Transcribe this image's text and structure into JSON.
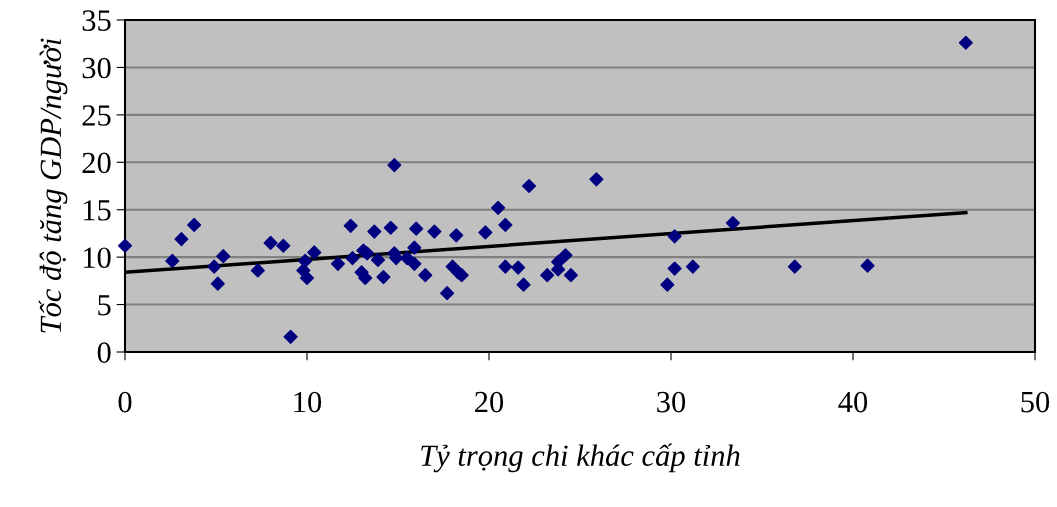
{
  "chart_data": {
    "type": "scatter",
    "xlabel": "Tỷ trọng chi khác cấp tỉnh",
    "ylabel": "Tốc độ tăng GDP/người",
    "xlim": [
      0,
      50
    ],
    "xticks": [
      0,
      10,
      20,
      30,
      40,
      50
    ],
    "ylim": [
      0,
      35
    ],
    "yticks": [
      0,
      5,
      10,
      15,
      20,
      25,
      30,
      35
    ],
    "grid": "y",
    "legend": false,
    "marker": "diamond",
    "series": [
      {
        "color": "#000080",
        "x": [
          0,
          2.6,
          3.1,
          3.8,
          4.9,
          5.1,
          5.4,
          7.3,
          8.0,
          8.7,
          9.1,
          9.8,
          9.9,
          10.0,
          10.4,
          11.7,
          12.4,
          12.5,
          13.1,
          13.3,
          13.0,
          13.2,
          13.7,
          13.9,
          14.2,
          14.6,
          14.8,
          14.9,
          14.8,
          15.5,
          15.9,
          15.9,
          16.0,
          16.5,
          17.0,
          17.7,
          18.0,
          18.2,
          18.3,
          18.5,
          19.8,
          20.5,
          20.9,
          20.9,
          21.6,
          21.9,
          22.2,
          23.2,
          23.8,
          23.8,
          24.2,
          24.5,
          25.9,
          29.8,
          30.2,
          30.2,
          31.2,
          33.4,
          36.8,
          40.8,
          46.2
        ],
        "values": [
          11.2,
          9.6,
          11.9,
          13.4,
          9.0,
          7.2,
          10.1,
          8.6,
          11.5,
          11.2,
          1.6,
          8.6,
          9.6,
          7.8,
          10.5,
          9.3,
          13.3,
          9.9,
          10.7,
          10.4,
          8.4,
          7.8,
          12.7,
          9.7,
          7.9,
          13.1,
          19.7,
          9.9,
          10.4,
          9.9,
          11.0,
          9.3,
          13.0,
          8.1,
          12.7,
          6.2,
          9.0,
          12.3,
          8.4,
          8.1,
          12.6,
          15.2,
          13.4,
          9.0,
          8.9,
          7.1,
          17.5,
          8.1,
          8.7,
          9.5,
          10.2,
          8.1,
          18.2,
          7.1,
          12.2,
          8.8,
          9.0,
          13.6,
          9.0,
          9.1,
          32.6
        ]
      },
      {
        "type": "line",
        "color": "#000000",
        "marker": "none",
        "x": [
          0,
          46.2
        ],
        "values": [
          8.4,
          14.7
        ]
      }
    ]
  }
}
